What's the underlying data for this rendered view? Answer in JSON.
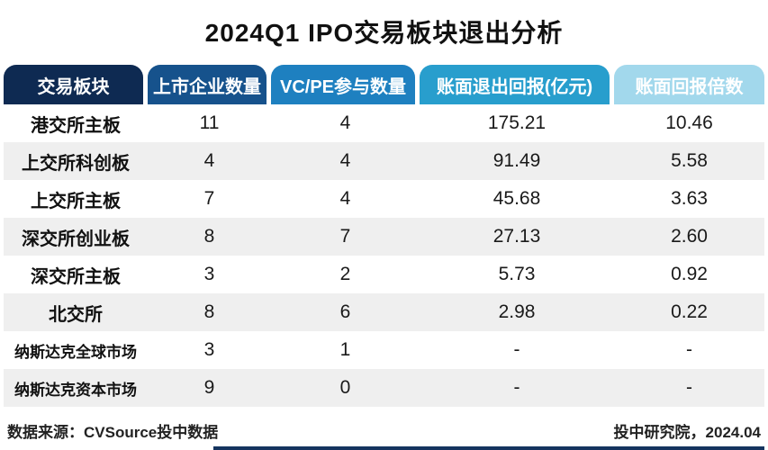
{
  "title": "2024Q1 IPO交易板块退出分析",
  "table": {
    "columns": [
      {
        "label": "交易板块",
        "color": "#0e2a52"
      },
      {
        "label": "上市企业数量",
        "color": "#16528c"
      },
      {
        "label": "VC/PE参与数量",
        "color": "#1e80c0"
      },
      {
        "label": "账面退出回报(亿元)",
        "color": "#289ecd"
      },
      {
        "label": "账面回报倍数",
        "color": "#a2d8ec"
      }
    ],
    "rows": [
      {
        "board": "港交所主板",
        "listed": "11",
        "vcpe": "4",
        "return": "175.21",
        "multiple": "10.46"
      },
      {
        "board": "上交所科创板",
        "listed": "4",
        "vcpe": "4",
        "return": "91.49",
        "multiple": "5.58"
      },
      {
        "board": "上交所主板",
        "listed": "7",
        "vcpe": "4",
        "return": "45.68",
        "multiple": "3.63"
      },
      {
        "board": "深交所创业板",
        "listed": "8",
        "vcpe": "7",
        "return": "27.13",
        "multiple": "2.60"
      },
      {
        "board": "深交所主板",
        "listed": "3",
        "vcpe": "2",
        "return": "5.73",
        "multiple": "0.92"
      },
      {
        "board": "北交所",
        "listed": "8",
        "vcpe": "6",
        "return": "2.98",
        "multiple": "0.22"
      },
      {
        "board": "纳斯达克全球市场",
        "listed": "3",
        "vcpe": "1",
        "return": "-",
        "multiple": "-"
      },
      {
        "board": "纳斯达克资本市场",
        "listed": "9",
        "vcpe": "0",
        "return": "-",
        "multiple": "-"
      }
    ]
  },
  "footer": {
    "source": "数据来源：CVSource投中数据",
    "credit": "投中研究院，2024.04"
  },
  "chart_data": {
    "type": "table",
    "title": "2024Q1 IPO交易板块退出分析",
    "columns": [
      "交易板块",
      "上市企业数量",
      "VC/PE参与数量",
      "账面退出回报(亿元)",
      "账面回报倍数"
    ],
    "rows": [
      [
        "港交所主板",
        11,
        4,
        175.21,
        10.46
      ],
      [
        "上交所科创板",
        4,
        4,
        91.49,
        5.58
      ],
      [
        "上交所主板",
        7,
        4,
        45.68,
        3.63
      ],
      [
        "深交所创业板",
        8,
        7,
        27.13,
        2.6
      ],
      [
        "深交所主板",
        3,
        2,
        5.73,
        0.92
      ],
      [
        "北交所",
        8,
        6,
        2.98,
        0.22
      ],
      [
        "纳斯达克全球市场",
        3,
        1,
        null,
        null
      ],
      [
        "纳斯达克资本市场",
        9,
        0,
        null,
        null
      ]
    ],
    "source": "数据来源：CVSource投中数据",
    "credit": "投中研究院，2024.04"
  }
}
